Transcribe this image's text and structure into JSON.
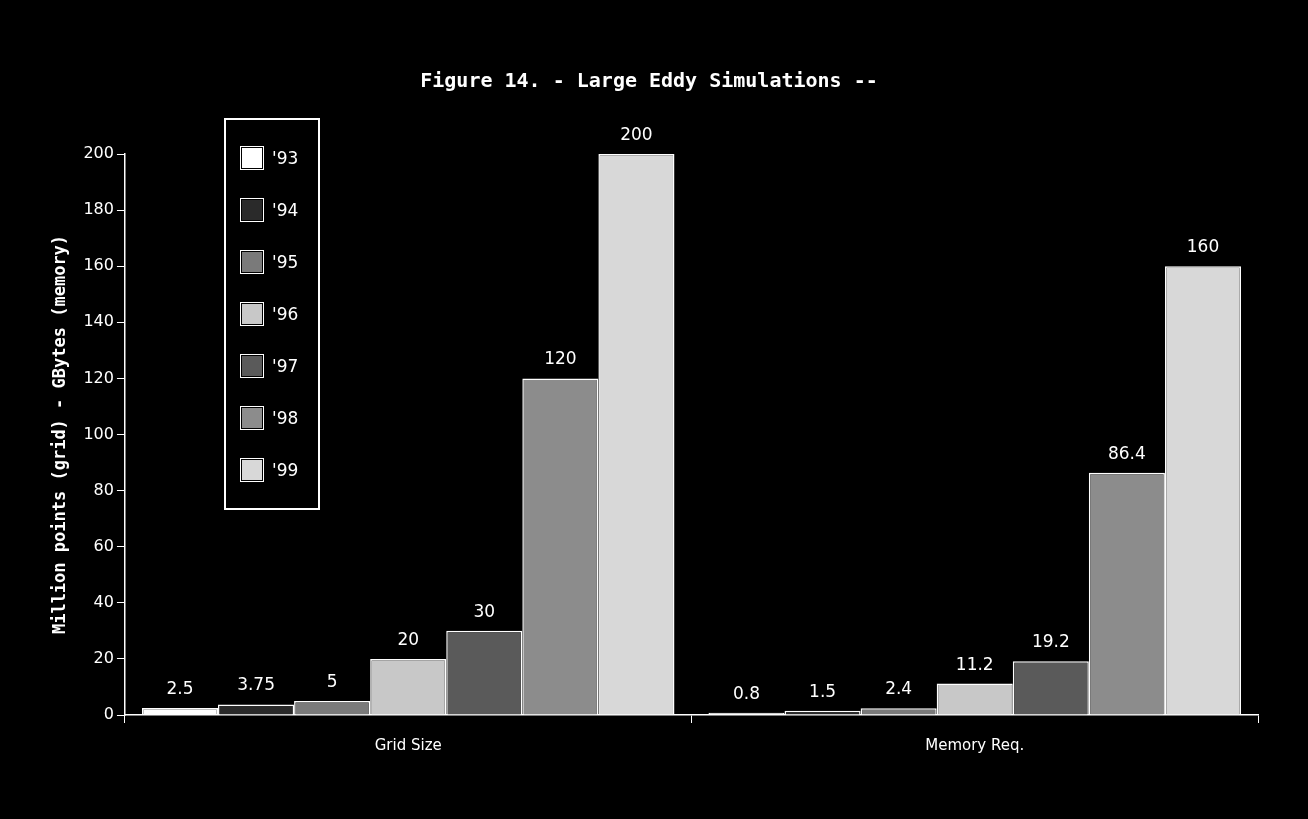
{
  "chart_data": {
    "type": "bar",
    "title": "Figure 14. - Large Eddy Simulations --",
    "ylabel": "Million points (grid) - GBytes (memory)",
    "categories": [
      "Grid Size",
      "Memory Req."
    ],
    "series": [
      {
        "name": "'93",
        "color": "#ffffff",
        "values": [
          2.5,
          0.8
        ]
      },
      {
        "name": "'94",
        "color": "#2a2a2a",
        "values": [
          3.75,
          1.5
        ]
      },
      {
        "name": "'95",
        "color": "#7a7a7a",
        "values": [
          5,
          2.4
        ]
      },
      {
        "name": "'96",
        "color": "#c8c8c8",
        "values": [
          20,
          11.2
        ]
      },
      {
        "name": "'97",
        "color": "#5a5a5a",
        "values": [
          30,
          19.2
        ]
      },
      {
        "name": "'98",
        "color": "#8c8c8c",
        "values": [
          120,
          86.4
        ]
      },
      {
        "name": "'99",
        "color": "#d8d8d8",
        "values": [
          200,
          160
        ]
      }
    ],
    "ylim": [
      0,
      200
    ],
    "yticks": [
      0,
      20,
      40,
      60,
      80,
      100,
      120,
      140,
      160,
      180,
      200
    ],
    "grid": false,
    "legend": "top left",
    "data_labels": true
  }
}
